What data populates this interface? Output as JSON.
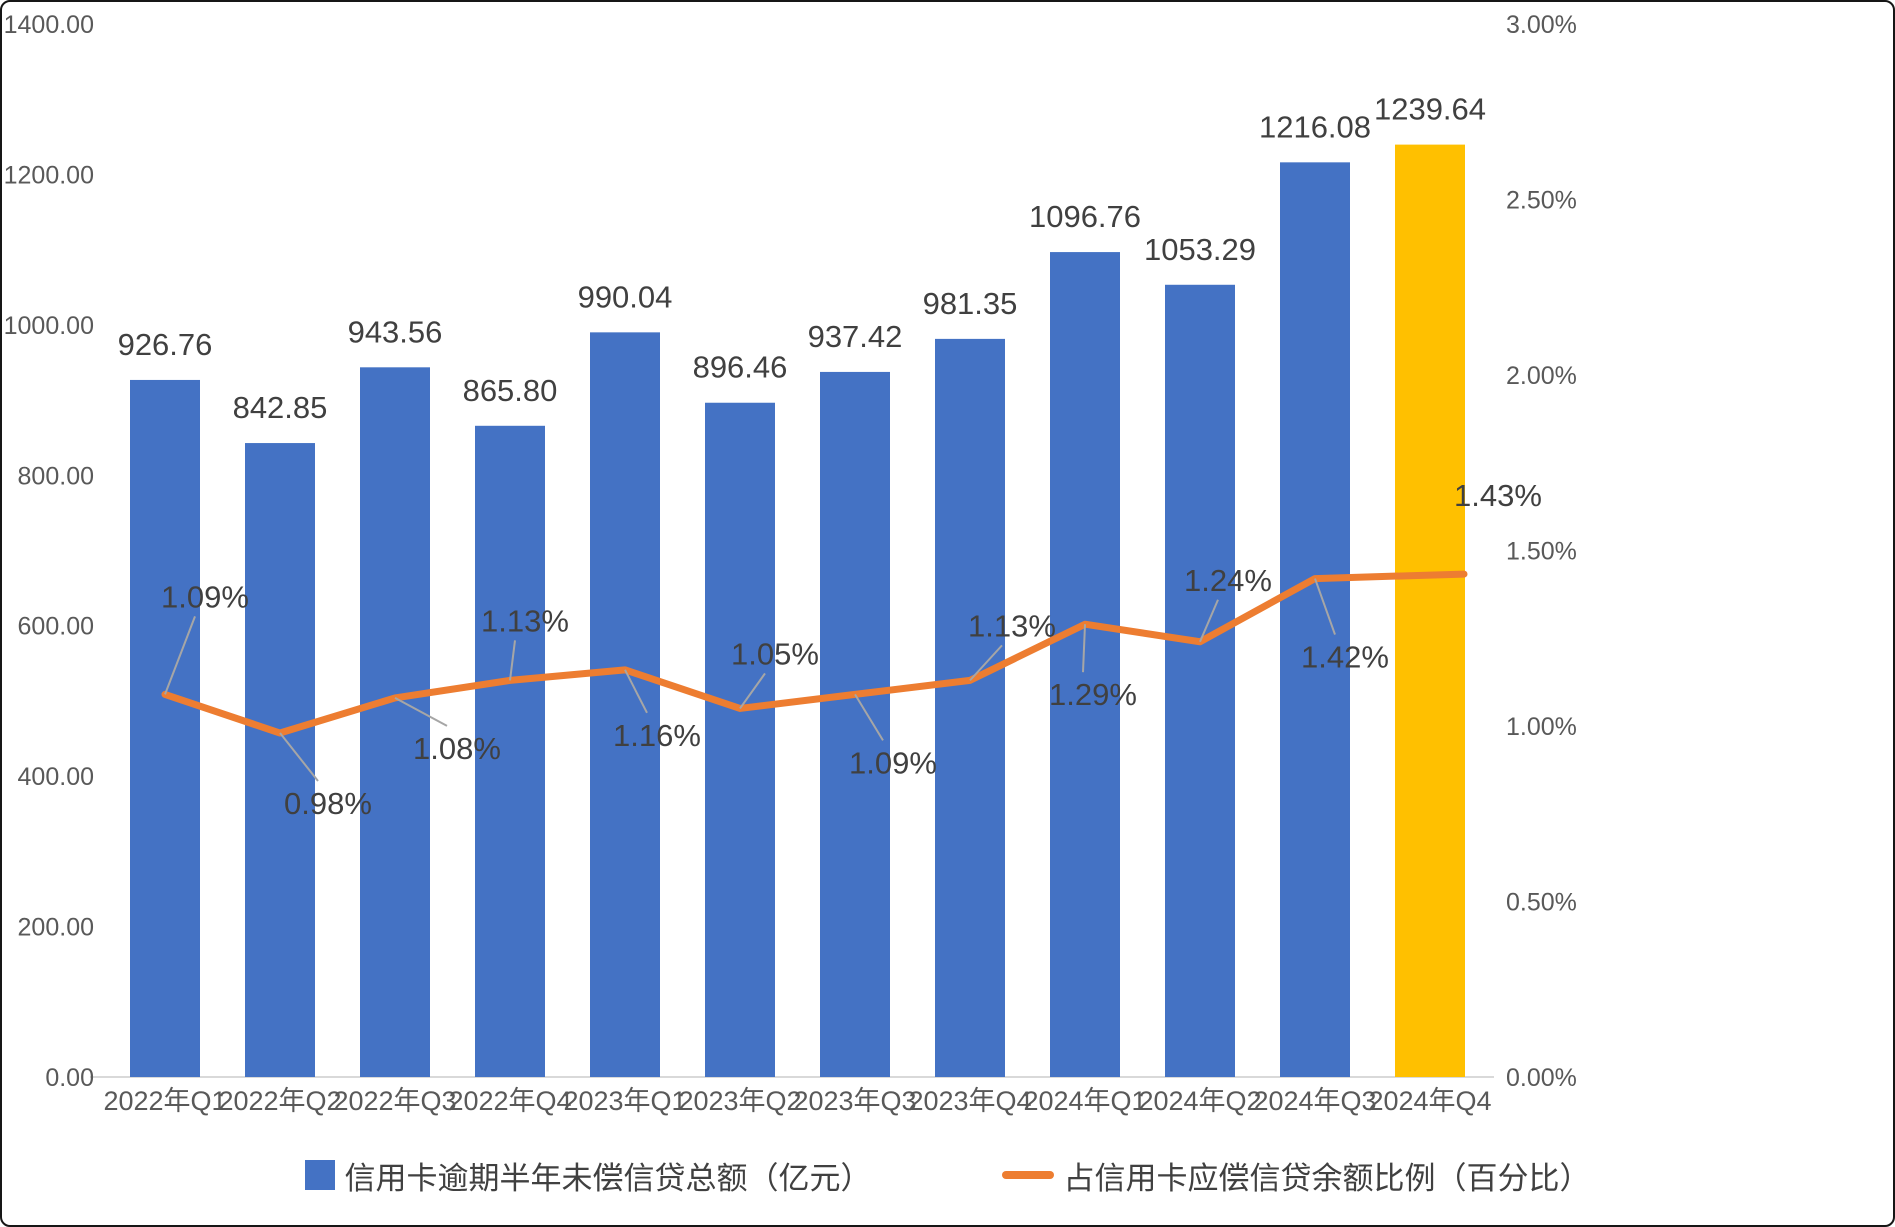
{
  "chart_data": {
    "type": "bar+line",
    "title": "",
    "categories": [
      "2022年Q1",
      "2022年Q2",
      "2022年Q3",
      "2022年Q4",
      "2023年Q1",
      "2023年Q2",
      "2023年Q3",
      "2023年Q4",
      "2024年Q1",
      "2024年Q2",
      "2024年Q3",
      "2024年Q4"
    ],
    "series": [
      {
        "name": "信用卡逾期半年未偿信贷总额（亿元）",
        "type": "bar",
        "axis": "left",
        "values": [
          926.76,
          842.85,
          943.56,
          865.8,
          990.04,
          896.46,
          937.42,
          981.35,
          1096.76,
          1053.29,
          1216.08,
          1239.64
        ],
        "labels": [
          "926.76",
          "842.85",
          "943.56",
          "865.80",
          "990.04",
          "896.46",
          "937.42",
          "981.35",
          "1096.76",
          "1053.29",
          "1216.08",
          "1239.64"
        ],
        "color": "#4472C4",
        "highlight": {
          "index": 11,
          "color": "#FFC000"
        }
      },
      {
        "name": "占信用卡应偿信贷余额比例（百分比）",
        "type": "line",
        "axis": "right",
        "values": [
          1.09,
          0.98,
          1.08,
          1.13,
          1.16,
          1.05,
          1.09,
          1.13,
          1.29,
          1.24,
          1.42,
          1.43
        ],
        "labels": [
          "1.09%",
          "0.98%",
          "1.08%",
          "1.13%",
          "1.16%",
          "1.05%",
          "1.09%",
          "1.13%",
          "1.29%",
          "1.24%",
          "1.42%",
          "1.43%"
        ],
        "color": "#ED7D31"
      }
    ],
    "left_axis": {
      "min": 0,
      "max": 1400,
      "tick_labels": [
        "1400.00",
        "1200.00",
        "1000.00",
        "800.00",
        "600.00",
        "400.00",
        "200.00",
        "0.00"
      ]
    },
    "right_axis": {
      "min": 0,
      "max": 3,
      "tick_labels": [
        "3.00%",
        "2.50%",
        "2.00%",
        "1.50%",
        "1.00%",
        "0.50%",
        "0.00%"
      ]
    },
    "legend_position": "bottom",
    "grid": "off"
  },
  "colors": {
    "data_label": "#404040",
    "axis_label": "#595959",
    "leader_line": "#A6A6A6",
    "baseline": "#D9D9D9",
    "background": "#FFFFFF"
  }
}
